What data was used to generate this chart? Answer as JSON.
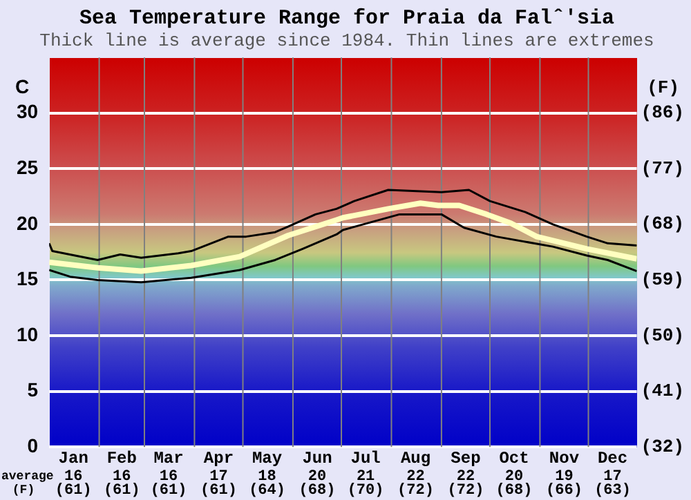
{
  "chart_data": {
    "type": "line",
    "title": "Sea Temperature Range for Praia da Falˆ'sia",
    "subtitle": "Thick line is average since 1984. Thin lines are extremes",
    "ylabel": "C",
    "y2label": "(F)",
    "xlim": [
      "--01-01",
      "--12-31"
    ],
    "xticks": [
      {
        "value": "--01-16",
        "label": "Jan"
      },
      {
        "value": "--02-15",
        "label": "Feb"
      },
      {
        "value": "--03-16",
        "label": "Mar"
      },
      {
        "value": "--04-16",
        "label": "Apr"
      },
      {
        "value": "--05-16",
        "label": "May"
      },
      {
        "value": "--06-16",
        "label": "Jun"
      },
      {
        "value": "--07-16",
        "label": "Jul"
      },
      {
        "value": "--08-16",
        "label": "Aug"
      },
      {
        "value": "--09-16",
        "label": "Sep"
      },
      {
        "value": "--10-16",
        "label": "Oct"
      },
      {
        "value": "--11-16",
        "label": "Nov"
      },
      {
        "value": "--12-16",
        "label": "Dec"
      }
    ],
    "ylim": [
      0,
      35
    ],
    "yticks": [
      0,
      5,
      10,
      15,
      20,
      25,
      30
    ],
    "y2lim": [
      32,
      95
    ],
    "y2ticks": [
      {
        "value": 32,
        "label": "(32)"
      },
      {
        "value": 41,
        "label": "(41)"
      },
      {
        "value": 50,
        "label": "(50)"
      },
      {
        "value": 59,
        "label": "(59)"
      },
      {
        "value": 68,
        "label": "(68)"
      },
      {
        "value": 77,
        "label": "(77)"
      },
      {
        "value": 86,
        "label": "(86)"
      }
    ],
    "series": [
      {
        "color": "#000000",
        "x": [
          "--01-01",
          "--01-03",
          "--01-31",
          "--02-14",
          "--02-27",
          "--03-22",
          "--03-30",
          "--04-22",
          "--05-03",
          "--05-21",
          "--05-29",
          "--06-15",
          "--06-28",
          "--07-09",
          "--07-30",
          "--09-01",
          "--09-18",
          "--10-01",
          "--10-23",
          "--11-09",
          "--11-30",
          "--12-13",
          "--12-31"
        ],
        "values": [
          18.3,
          17.6,
          16.8,
          17.3,
          17.0,
          17.4,
          17.6,
          18.9,
          18.9,
          19.3,
          19.8,
          20.9,
          21.4,
          22.1,
          23.1,
          22.9,
          23.1,
          22.1,
          21.1,
          20.0,
          18.9,
          18.3,
          18.1
        ]
      },
      {
        "color": "#000000",
        "x": [
          "--01-01",
          "--01-14",
          "--01-31",
          "--02-27",
          "--03-30",
          "--04-29",
          "--05-21",
          "--06-07",
          "--06-28",
          "--07-02",
          "--08-06",
          "--09-01",
          "--09-15",
          "--10-05",
          "--11-09",
          "--11-30",
          "--12-13",
          "--12-31"
        ],
        "values": [
          15.9,
          15.3,
          15.0,
          14.8,
          15.2,
          15.9,
          16.8,
          17.8,
          19.1,
          19.5,
          20.9,
          20.9,
          19.7,
          18.9,
          18.0,
          17.2,
          16.8,
          15.8
        ]
      },
      {
        "color": "#ffffc0",
        "x": [
          "--01-01",
          "--01-31",
          "--02-27",
          "--03-30",
          "--04-29",
          "--05-29",
          "--06-28",
          "--07-02",
          "--07-30",
          "--08-19",
          "--08-30",
          "--09-12",
          "--09-29",
          "--10-14",
          "--10-30",
          "--11-30",
          "--12-31"
        ],
        "values": [
          16.6,
          16.1,
          15.8,
          16.3,
          17.1,
          19.0,
          20.4,
          20.6,
          21.4,
          21.9,
          21.7,
          21.7,
          20.9,
          20.1,
          18.9,
          17.8,
          16.9
        ]
      }
    ],
    "ref_lines": [
      {
        "axis": "x",
        "value": "--02-01",
        "color": "#808080"
      },
      {
        "axis": "x",
        "value": "--03-01",
        "color": "#808080"
      },
      {
        "axis": "x",
        "value": "--04-01",
        "color": "#808080"
      },
      {
        "axis": "x",
        "value": "--05-01",
        "color": "#808080"
      },
      {
        "axis": "x",
        "value": "--06-01",
        "color": "#808080"
      },
      {
        "axis": "x",
        "value": "--07-01",
        "color": "#808080"
      },
      {
        "axis": "x",
        "value": "--08-01",
        "color": "#808080"
      },
      {
        "axis": "x",
        "value": "--09-01",
        "color": "#808080"
      },
      {
        "axis": "x",
        "value": "--10-01",
        "color": "#808080"
      },
      {
        "axis": "x",
        "value": "--11-01",
        "color": "#808080"
      },
      {
        "axis": "x",
        "value": "--12-01",
        "color": "#808080"
      }
    ],
    "annotations": [
      "average",
      "(F)",
      "16",
      "(61)",
      "16",
      "(61)",
      "16",
      "(61)",
      "17",
      "(61)",
      "18",
      "(64)",
      "20",
      "(68)",
      "21",
      "(70)",
      "22",
      "(72)",
      "22",
      "(72)",
      "20",
      "(68)",
      "19",
      "(66)",
      "17",
      "(63)"
    ],
    "grid": "y",
    "legend": false,
    "marker": "none",
    "line_style": "solid"
  }
}
